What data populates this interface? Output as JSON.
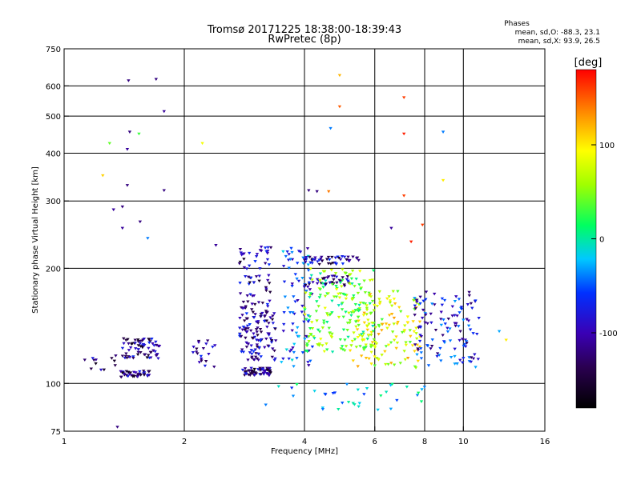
{
  "chart_data": {
    "type": "scatter",
    "title": "Tromsø 20171225 18:38:00-18:39:43",
    "subtitle": "RwPretec (8p)",
    "xlabel": "Frequency [MHz]",
    "ylabel": "Stationary phase Virtual Height [km]",
    "x_scale": "log",
    "y_scale": "log",
    "xlim": [
      1,
      16
    ],
    "ylim": [
      75,
      750
    ],
    "xticks": [
      1,
      2,
      4,
      6,
      8,
      10,
      16
    ],
    "xtick_labels": [
      "1",
      "2",
      "4",
      "6",
      "8",
      "10",
      "16"
    ],
    "yticks": [
      75,
      100,
      200,
      300,
      400,
      500,
      600,
      750
    ],
    "ytick_labels": [
      "75",
      "100",
      "200",
      "300",
      "400",
      "500",
      "600",
      "750"
    ],
    "x_grid": [
      2,
      4,
      6,
      8,
      10
    ],
    "y_grid": [
      100,
      200,
      300,
      400,
      500,
      600
    ],
    "stats_title": "Phases",
    "stats_lines": [
      "mean, sd,O: -88.3, 23.1",
      "mean, sd,X:  93.9, 26.5"
    ],
    "colorbar": {
      "label": "[deg]",
      "range": [
        -180,
        180
      ],
      "ticks": [
        -100,
        0,
        100
      ],
      "tick_labels": [
        "-100",
        "0",
        "100"
      ]
    },
    "clusters": [
      {
        "f": [
          1.38,
          1.65
        ],
        "h": [
          104,
          108
        ],
        "phase": -120,
        "n": 45
      },
      {
        "f": [
          1.4,
          1.75
        ],
        "h": [
          116,
          132
        ],
        "phase": -115,
        "n": 70
      },
      {
        "f": [
          1.1,
          1.35
        ],
        "h": [
          108,
          120
        ],
        "phase": -120,
        "n": 12
      },
      {
        "f": [
          2.1,
          2.4
        ],
        "h": [
          110,
          130
        ],
        "phase": -110,
        "n": 20
      },
      {
        "f": [
          2.8,
          3.3
        ],
        "h": [
          105,
          110
        ],
        "phase": -120,
        "n": 60
      },
      {
        "f": [
          2.75,
          3.4
        ],
        "h": [
          115,
          160
        ],
        "phase": -105,
        "n": 120
      },
      {
        "f": [
          2.75,
          3.3
        ],
        "h": [
          160,
          228
        ],
        "phase": -110,
        "n": 60
      },
      {
        "f": [
          3.5,
          4.2
        ],
        "h": [
          110,
          230
        ],
        "phase": -60,
        "n": 80
      },
      {
        "f": [
          4.0,
          5.5
        ],
        "h": [
          205,
          215
        ],
        "phase": -110,
        "n": 45
      },
      {
        "f": [
          4.0,
          5.2
        ],
        "h": [
          180,
          192
        ],
        "phase": -110,
        "n": 35
      },
      {
        "f": [
          4.0,
          6.0
        ],
        "h": [
          120,
          200
        ],
        "phase": 40,
        "n": 180
      },
      {
        "f": [
          5.2,
          7.8
        ],
        "h": [
          110,
          175
        ],
        "phase": 80,
        "n": 140
      },
      {
        "f": [
          7.5,
          11.0
        ],
        "h": [
          110,
          175
        ],
        "phase": -80,
        "n": 120
      },
      {
        "f": [
          3.4,
          8.0
        ],
        "h": [
          85,
          100
        ],
        "phase": -20,
        "n": 35
      }
    ],
    "scattered_points": [
      {
        "x": 1.45,
        "y": 620,
        "phase": -120
      },
      {
        "x": 1.7,
        "y": 625,
        "phase": -120
      },
      {
        "x": 1.78,
        "y": 515,
        "phase": -110
      },
      {
        "x": 1.46,
        "y": 455,
        "phase": -120
      },
      {
        "x": 1.54,
        "y": 450,
        "phase": 30
      },
      {
        "x": 1.3,
        "y": 425,
        "phase": 40
      },
      {
        "x": 1.44,
        "y": 410,
        "phase": -110
      },
      {
        "x": 1.25,
        "y": 350,
        "phase": 110
      },
      {
        "x": 1.44,
        "y": 330,
        "phase": -120
      },
      {
        "x": 1.78,
        "y": 320,
        "phase": -120
      },
      {
        "x": 2.22,
        "y": 425,
        "phase": 90
      },
      {
        "x": 4.9,
        "y": 640,
        "phase": 120
      },
      {
        "x": 4.9,
        "y": 530,
        "phase": 150
      },
      {
        "x": 4.65,
        "y": 465,
        "phase": -40
      },
      {
        "x": 7.1,
        "y": 560,
        "phase": 160
      },
      {
        "x": 7.1,
        "y": 450,
        "phase": 170
      },
      {
        "x": 8.9,
        "y": 455,
        "phase": -40
      },
      {
        "x": 7.1,
        "y": 310,
        "phase": 160
      },
      {
        "x": 8.9,
        "y": 340,
        "phase": 100
      },
      {
        "x": 4.6,
        "y": 318,
        "phase": 140
      },
      {
        "x": 4.1,
        "y": 320,
        "phase": -120
      },
      {
        "x": 4.3,
        "y": 318,
        "phase": -120
      },
      {
        "x": 7.9,
        "y": 260,
        "phase": 160
      },
      {
        "x": 1.4,
        "y": 290,
        "phase": -120
      },
      {
        "x": 1.33,
        "y": 285,
        "phase": -110
      },
      {
        "x": 1.55,
        "y": 265,
        "phase": -120
      },
      {
        "x": 1.4,
        "y": 255,
        "phase": -110
      },
      {
        "x": 1.62,
        "y": 240,
        "phase": -40
      },
      {
        "x": 2.4,
        "y": 230,
        "phase": -110
      },
      {
        "x": 6.6,
        "y": 255,
        "phase": -110
      },
      {
        "x": 7.4,
        "y": 235,
        "phase": 170
      },
      {
        "x": 12.8,
        "y": 130,
        "phase": 100
      },
      {
        "x": 12.3,
        "y": 137,
        "phase": -30
      },
      {
        "x": 3.2,
        "y": 88,
        "phase": -40
      },
      {
        "x": 1.36,
        "y": 77,
        "phase": -120
      }
    ]
  }
}
